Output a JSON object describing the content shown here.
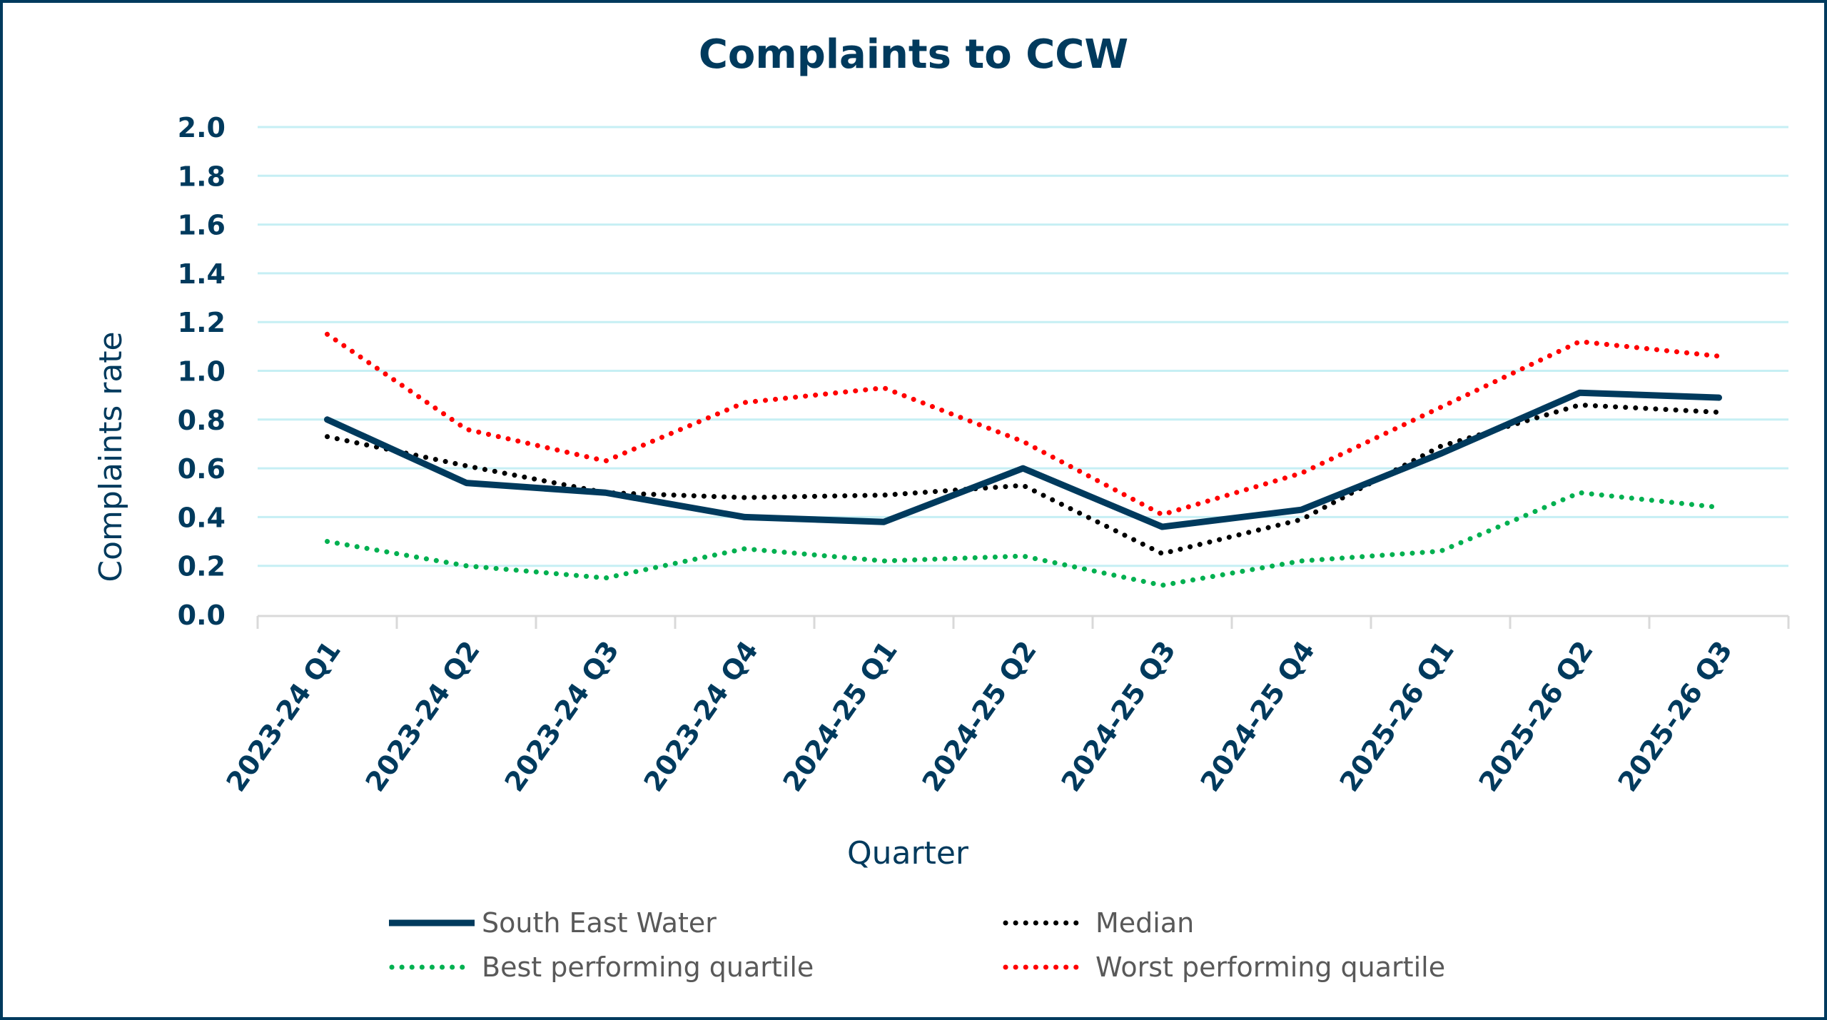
{
  "chart_data": {
    "type": "line",
    "title": "Complaints to CCW",
    "xlabel": "Quarter",
    "ylabel": "Complaints rate",
    "ylim": [
      0,
      2.0
    ],
    "yticks": [
      "0.0",
      "0.2",
      "0.4",
      "0.6",
      "0.8",
      "1.0",
      "1.2",
      "1.4",
      "1.6",
      "1.8",
      "2.0"
    ],
    "grid": true,
    "legend_position": "bottom",
    "categories": [
      "2023-24 Q1",
      "2023-24 Q2",
      "2023-24 Q3",
      "2023-24 Q4",
      "2024-25 Q1",
      "2024-25 Q2",
      "2024-25 Q3",
      "2024-25 Q4",
      "2025-26 Q1",
      "2025-26 Q2",
      "2025-26 Q3"
    ],
    "series": [
      {
        "name": "South East Water",
        "style": "solid",
        "color": "#003A5D",
        "values": [
          0.8,
          0.54,
          0.5,
          0.4,
          0.38,
          0.6,
          0.36,
          0.43,
          0.66,
          0.91,
          0.89
        ]
      },
      {
        "name": "Median",
        "style": "dotted",
        "color": "#000000",
        "values": [
          0.73,
          0.61,
          0.5,
          0.48,
          0.49,
          0.53,
          0.25,
          0.39,
          0.69,
          0.86,
          0.83
        ]
      },
      {
        "name": "Best performing quartile",
        "style": "dotted",
        "color": "#00B050",
        "values": [
          0.3,
          0.2,
          0.15,
          0.27,
          0.22,
          0.24,
          0.12,
          0.22,
          0.26,
          0.5,
          0.44
        ]
      },
      {
        "name": "Worst performing quartile",
        "style": "dotted",
        "color": "#FF0000",
        "values": [
          1.15,
          0.76,
          0.63,
          0.87,
          0.93,
          0.71,
          0.41,
          0.58,
          0.85,
          1.12,
          1.06
        ]
      }
    ]
  },
  "colors": {
    "frame": "#003A5D",
    "gridline": "#C6EFF4",
    "axis": "#D9D9D9"
  }
}
